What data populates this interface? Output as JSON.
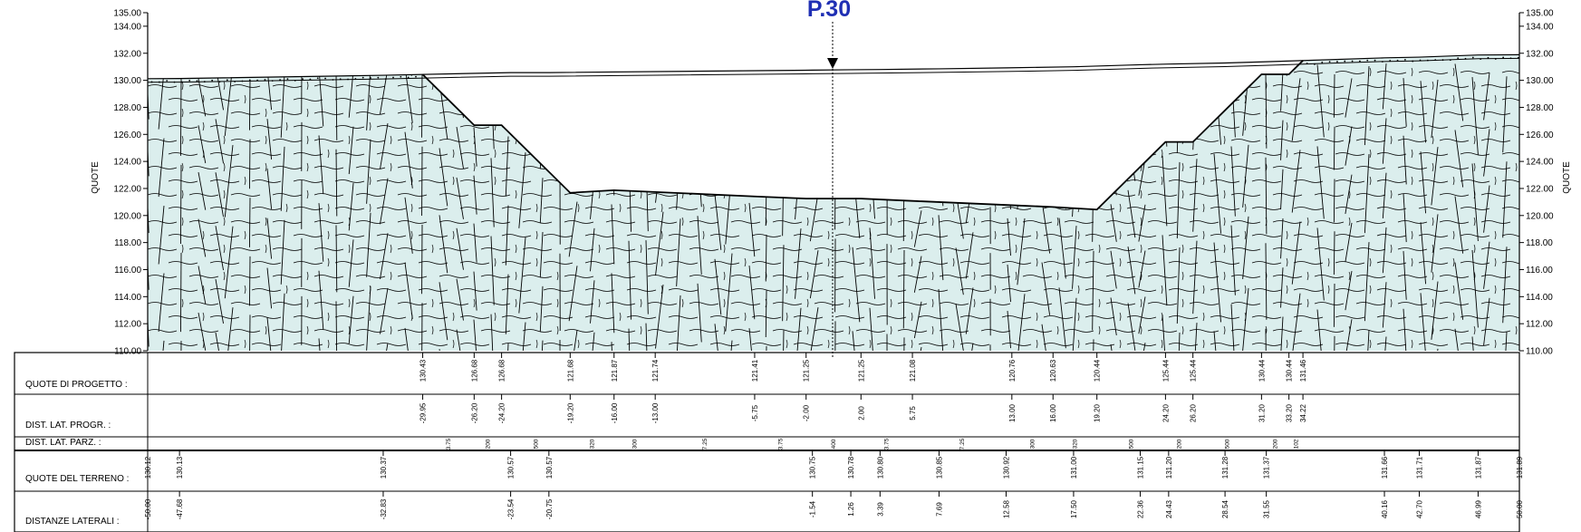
{
  "section_title": "P.30",
  "axis_title_left": "QUOTE",
  "axis_title_right": "QUOTE",
  "y_ticks": [
    "135.00",
    "134.00",
    "132.00",
    "130.00",
    "128.00",
    "126.00",
    "124.00",
    "122.00",
    "120.00",
    "118.00",
    "116.00",
    "114.00",
    "112.00",
    "110.00"
  ],
  "y_tick_values": [
    135,
    134,
    132,
    130,
    128,
    126,
    124,
    122,
    120,
    118,
    116,
    114,
    112,
    110
  ],
  "y_range": [
    110,
    135
  ],
  "x_range": [
    -50,
    50
  ],
  "rows": {
    "quote_progetto": "QUOTE DI PROGETTO :",
    "dist_lat_progr": "DIST. LAT. PROGR. :",
    "dist_lat_parz": "DIST. LAT. PARZ. :",
    "quote_terreno": "QUOTE DEL TERRENO :",
    "distanze_laterali": "DISTANZE LATERALI :"
  },
  "project": [
    {
      "x": -29.95,
      "z": 130.43,
      "z_label": "130.43",
      "x_label": "-29.95"
    },
    {
      "x": -26.2,
      "z": 126.68,
      "z_label": "126.68",
      "x_label": "-26.20"
    },
    {
      "x": -24.2,
      "z": 126.68,
      "z_label": "126.68",
      "x_label": "-24.20"
    },
    {
      "x": -19.2,
      "z": 121.68,
      "z_label": "121.68",
      "x_label": "-19.20"
    },
    {
      "x": -16.0,
      "z": 121.87,
      "z_label": "121.87",
      "x_label": "-16.00"
    },
    {
      "x": -13.0,
      "z": 121.74,
      "z_label": "121.74",
      "x_label": "-13.00"
    },
    {
      "x": -5.75,
      "z": 121.41,
      "z_label": "121.41",
      "x_label": "-5.75"
    },
    {
      "x": -2.0,
      "z": 121.25,
      "z_label": "121.25",
      "x_label": "-2.00"
    },
    {
      "x": 2.0,
      "z": 121.25,
      "z_label": "121.25",
      "x_label": "2.00"
    },
    {
      "x": 5.75,
      "z": 121.08,
      "z_label": "121.08",
      "x_label": "5.75"
    },
    {
      "x": 13.0,
      "z": 120.76,
      "z_label": "120.76",
      "x_label": "13.00"
    },
    {
      "x": 16.0,
      "z": 120.63,
      "z_label": "120.63",
      "x_label": "16.00"
    },
    {
      "x": 19.2,
      "z": 120.44,
      "z_label": "120.44",
      "x_label": "19.20"
    },
    {
      "x": 24.2,
      "z": 125.44,
      "z_label": "125.44",
      "x_label": "24.20"
    },
    {
      "x": 26.2,
      "z": 125.44,
      "z_label": "125.44",
      "x_label": "26.20"
    },
    {
      "x": 31.2,
      "z": 130.44,
      "z_label": "130.44",
      "x_label": "31.20"
    },
    {
      "x": 33.2,
      "z": 130.44,
      "z_label": "130.44",
      "x_label": "33.20"
    },
    {
      "x": 34.22,
      "z": 131.46,
      "z_label": "131.46",
      "x_label": "34.22"
    }
  ],
  "partials": [
    {
      "x": -28.08,
      "label": "3.75"
    },
    {
      "x": -25.2,
      "label": "200"
    },
    {
      "x": -21.7,
      "label": "500"
    },
    {
      "x": -17.6,
      "label": "320"
    },
    {
      "x": -14.5,
      "label": "300"
    },
    {
      "x": -9.38,
      "label": "7.25"
    },
    {
      "x": -3.88,
      "label": "3.75"
    },
    {
      "x": 0.0,
      "label": "400"
    },
    {
      "x": 3.88,
      "label": "3.75"
    },
    {
      "x": 9.38,
      "label": "7.25"
    },
    {
      "x": 14.5,
      "label": "300"
    },
    {
      "x": 17.6,
      "label": "320"
    },
    {
      "x": 21.7,
      "label": "500"
    },
    {
      "x": 25.2,
      "label": "200"
    },
    {
      "x": 28.7,
      "label": "500"
    },
    {
      "x": 32.2,
      "label": "200"
    },
    {
      "x": 33.71,
      "label": "102"
    }
  ],
  "terrain": [
    {
      "x": -50.0,
      "z": 130.12,
      "z_label": "130.12",
      "x_label": "-50.00"
    },
    {
      "x": -47.68,
      "z": 130.13,
      "z_label": "130.13",
      "x_label": "-47.68"
    },
    {
      "x": -32.83,
      "z": 130.37,
      "z_label": "130.37",
      "x_label": "-32.83"
    },
    {
      "x": -23.54,
      "z": 130.57,
      "z_label": "130.57",
      "x_label": "-23.54"
    },
    {
      "x": -20.75,
      "z": 130.57,
      "z_label": "130.57",
      "x_label": "-20.75"
    },
    {
      "x": -1.54,
      "z": 130.75,
      "z_label": "130.75",
      "x_label": "-1.54"
    },
    {
      "x": 1.26,
      "z": 130.78,
      "z_label": "130.78",
      "x_label": "1.26"
    },
    {
      "x": 3.39,
      "z": 130.8,
      "z_label": "130.80",
      "x_label": "3.39"
    },
    {
      "x": 7.69,
      "z": 130.85,
      "z_label": "130.85",
      "x_label": "7.69"
    },
    {
      "x": 12.58,
      "z": 130.92,
      "z_label": "130.92",
      "x_label": "12.58"
    },
    {
      "x": 17.5,
      "z": 131.0,
      "z_label": "131.00",
      "x_label": "17.50"
    },
    {
      "x": 22.36,
      "z": 131.15,
      "z_label": "131.15",
      "x_label": "22.36"
    },
    {
      "x": 24.43,
      "z": 131.2,
      "z_label": "131.20",
      "x_label": "24.43"
    },
    {
      "x": 28.54,
      "z": 131.28,
      "z_label": "131.28",
      "x_label": "28.54"
    },
    {
      "x": 31.55,
      "z": 131.37,
      "z_label": "131.37",
      "x_label": "31.55"
    },
    {
      "x": 40.16,
      "z": 131.66,
      "z_label": "131.66",
      "x_label": "40.16"
    },
    {
      "x": 42.7,
      "z": 131.71,
      "z_label": "131.71",
      "x_label": "42.70"
    },
    {
      "x": 46.99,
      "z": 131.87,
      "z_label": "131.87",
      "x_label": "46.99"
    },
    {
      "x": 50.0,
      "z": 131.89,
      "z_label": "131.89",
      "x_label": "50.00"
    }
  ],
  "colors": {
    "rock_fill": "#dbeeed",
    "title_blue": "#1f2fb4",
    "line": "#000000"
  }
}
